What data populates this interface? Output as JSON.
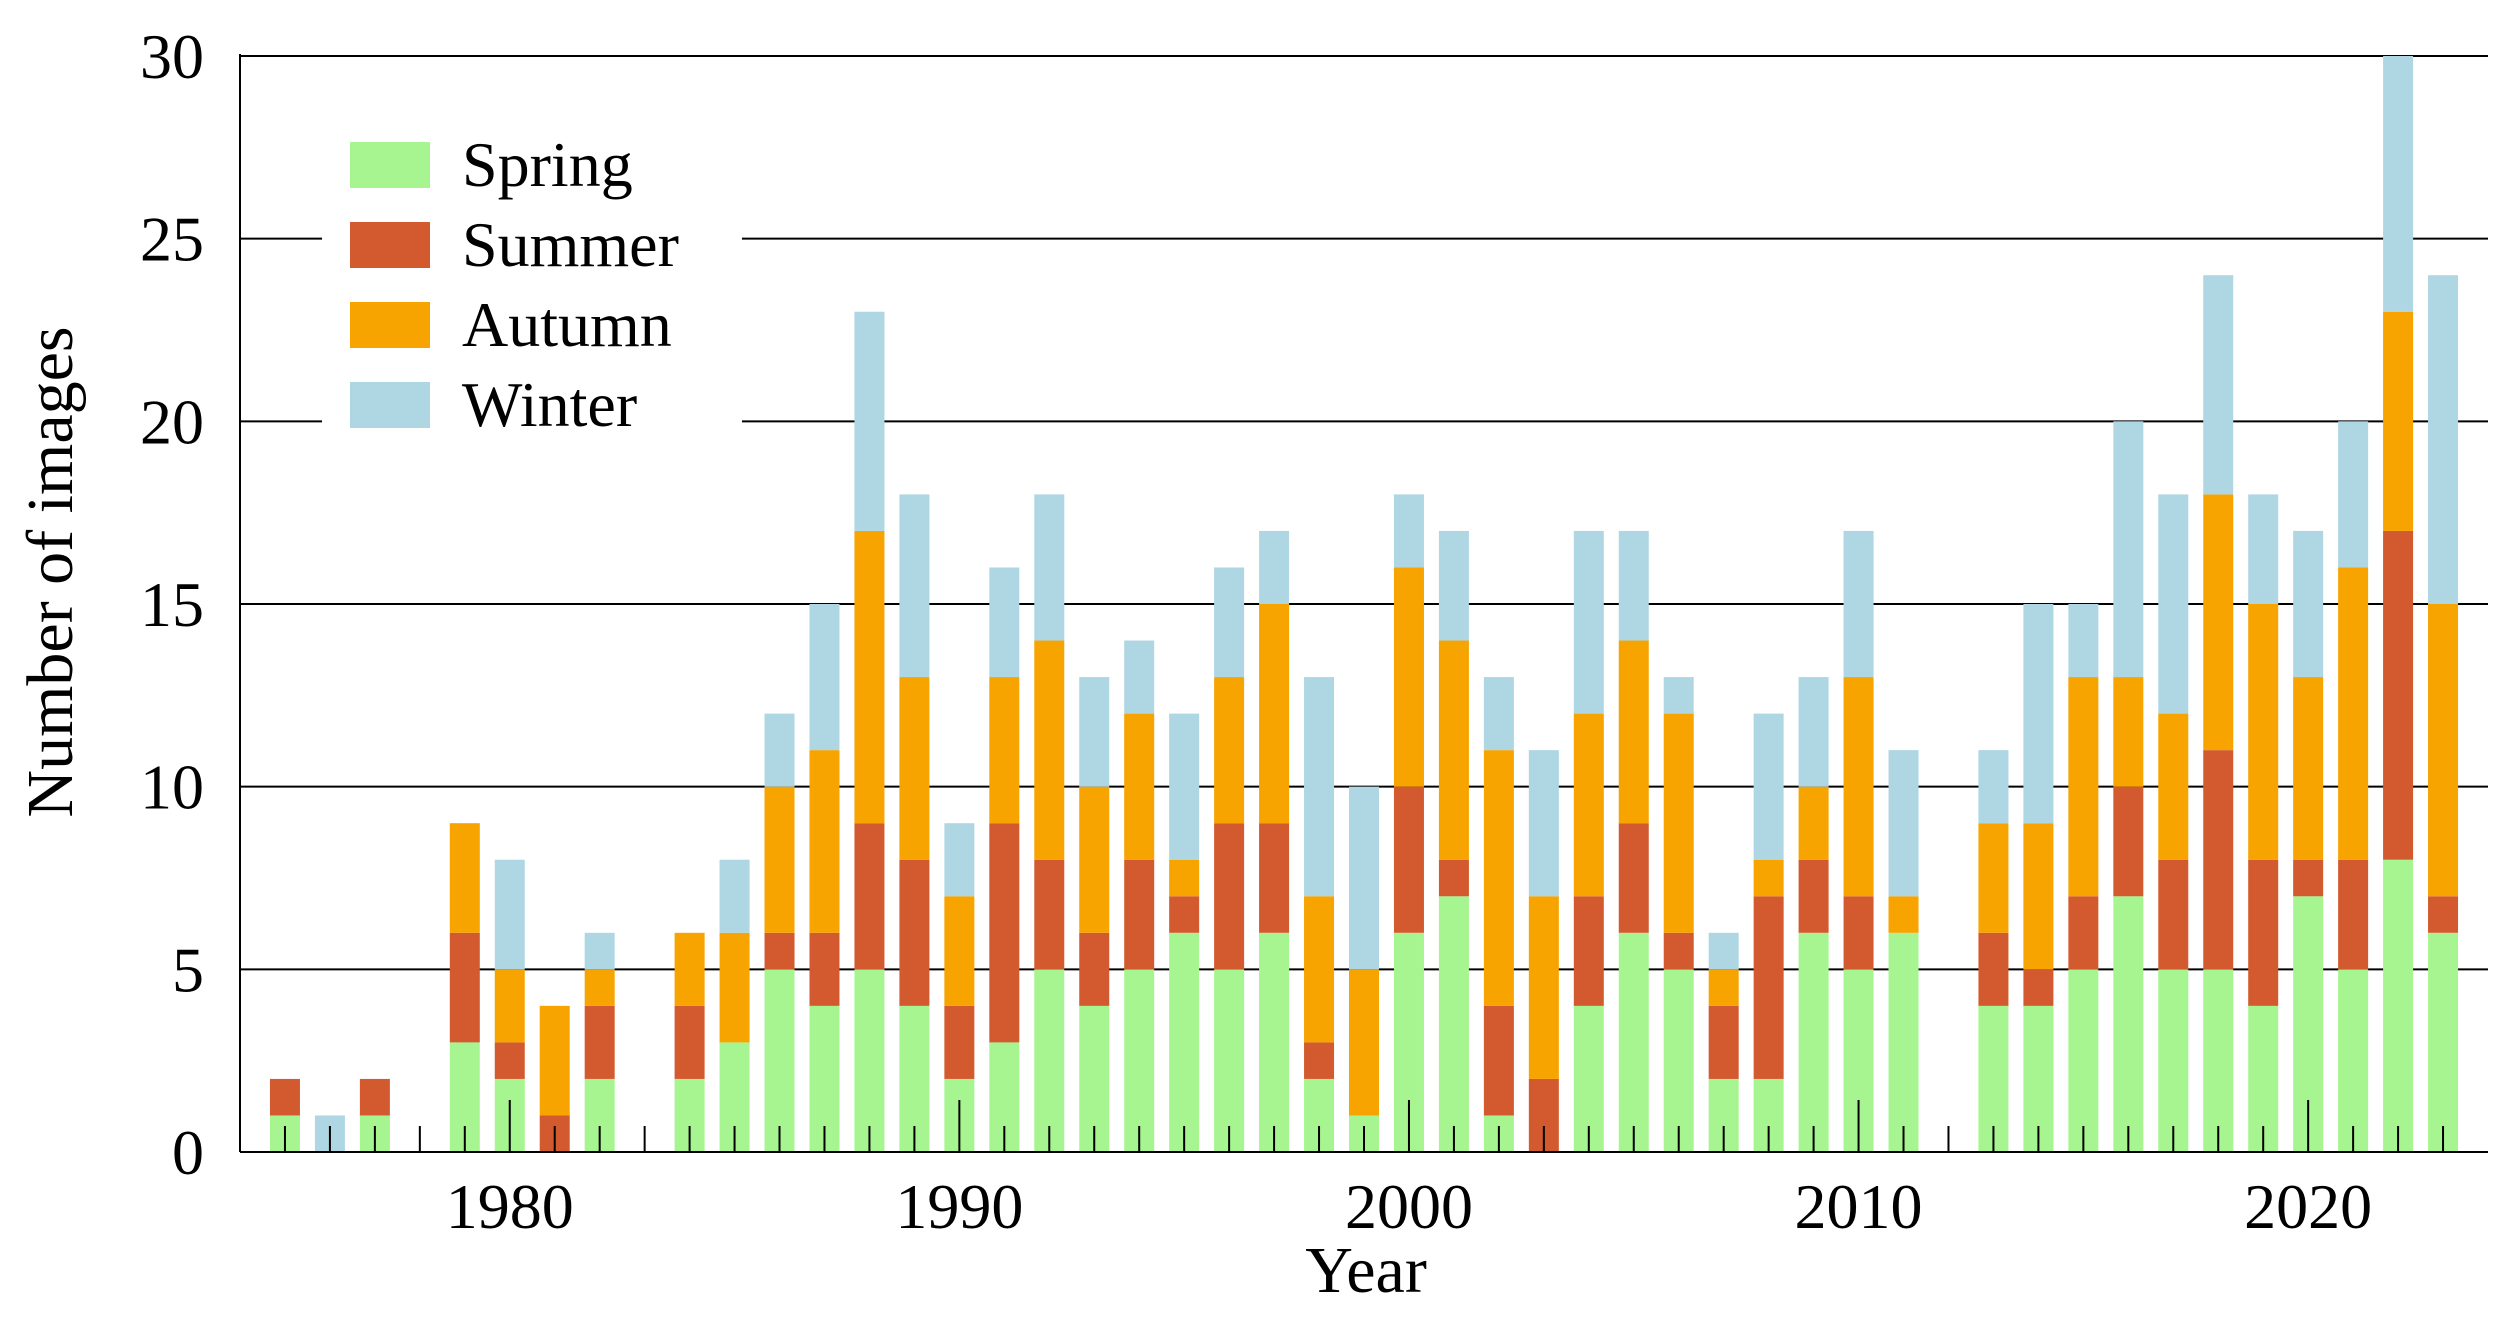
{
  "chart_data": {
    "type": "bar",
    "stacked": true,
    "title": "",
    "xlabel": "Year",
    "ylabel": "Number of images",
    "ylim": [
      0,
      30
    ],
    "xlim": [
      1974,
      2024
    ],
    "yticks": [
      0,
      5,
      10,
      15,
      20,
      25,
      30
    ],
    "xticks": [
      1980,
      1990,
      2000,
      2010,
      2020
    ],
    "grid": "horizontal",
    "legend_position": "top-left",
    "categories": [
      1975,
      1976,
      1977,
      1978,
      1979,
      1980,
      1981,
      1982,
      1983,
      1984,
      1985,
      1986,
      1987,
      1988,
      1989,
      1990,
      1991,
      1992,
      1993,
      1994,
      1995,
      1996,
      1997,
      1998,
      1999,
      2000,
      2001,
      2002,
      2003,
      2004,
      2005,
      2006,
      2007,
      2008,
      2009,
      2010,
      2011,
      2012,
      2013,
      2014,
      2015,
      2016,
      2017,
      2018,
      2019,
      2020,
      2021,
      2022,
      2023
    ],
    "series": [
      {
        "name": "Spring",
        "color": "#a6f590",
        "values": [
          1,
          0,
          1,
          0,
          3,
          2,
          0,
          2,
          0,
          2,
          3,
          5,
          4,
          5,
          4,
          2,
          3,
          5,
          4,
          5,
          6,
          5,
          6,
          2,
          1,
          6,
          7,
          1,
          0,
          4,
          6,
          5,
          2,
          2,
          6,
          5,
          6,
          0,
          4,
          4,
          5,
          7,
          5,
          5,
          4,
          7,
          5,
          8,
          6
        ]
      },
      {
        "name": "Summer",
        "color": "#d25a2e",
        "values": [
          1,
          0,
          1,
          0,
          3,
          1,
          1,
          2,
          0,
          2,
          0,
          1,
          2,
          4,
          4,
          2,
          6,
          3,
          2,
          3,
          1,
          4,
          3,
          1,
          0,
          4,
          1,
          3,
          2,
          3,
          3,
          1,
          2,
          5,
          2,
          2,
          0,
          0,
          2,
          1,
          2,
          3,
          3,
          6,
          4,
          1,
          3,
          9,
          1
        ]
      },
      {
        "name": "Autumn",
        "color": "#f7a300",
        "values": [
          0,
          0,
          0,
          0,
          3,
          2,
          3,
          1,
          0,
          2,
          3,
          4,
          5,
          8,
          5,
          3,
          4,
          6,
          4,
          4,
          1,
          4,
          6,
          4,
          4,
          6,
          6,
          7,
          5,
          5,
          5,
          6,
          1,
          1,
          2,
          6,
          1,
          0,
          3,
          4,
          6,
          3,
          4,
          7,
          7,
          5,
          8,
          6,
          8
        ]
      },
      {
        "name": "Winter",
        "color": "#aed7e3",
        "values": [
          0,
          1,
          0,
          0,
          0,
          3,
          0,
          1,
          0,
          0,
          2,
          2,
          4,
          6,
          5,
          2,
          3,
          4,
          3,
          2,
          4,
          3,
          2,
          6,
          5,
          2,
          3,
          2,
          4,
          5,
          3,
          1,
          1,
          4,
          3,
          4,
          4,
          0,
          2,
          6,
          2,
          7,
          6,
          6,
          3,
          4,
          4,
          7,
          9
        ]
      }
    ]
  }
}
